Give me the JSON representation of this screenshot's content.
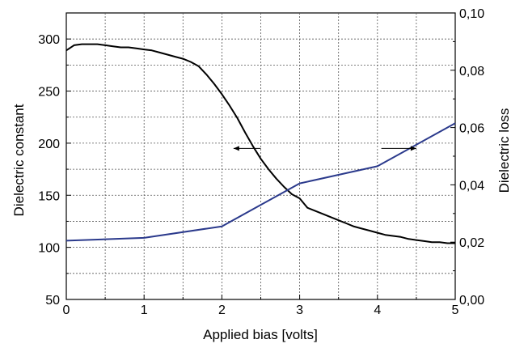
{
  "chart_data": {
    "type": "line",
    "title": "",
    "xlabel": "Applied bias [volts]",
    "ylabel_left": "Dielectric constant",
    "ylabel_right": "Dielectric loss",
    "xlim": [
      0,
      5
    ],
    "ylim_left": [
      50,
      325
    ],
    "ylim_right": [
      0.0,
      0.1
    ],
    "x_ticks": [
      0,
      1,
      2,
      3,
      4,
      5
    ],
    "x_tick_labels": [
      "0",
      "1",
      "2",
      "3",
      "4",
      "5"
    ],
    "y_left_ticks": [
      50,
      100,
      150,
      200,
      250,
      300
    ],
    "y_left_tick_labels": [
      "50",
      "100",
      "150",
      "200",
      "250",
      "300"
    ],
    "y_right_ticks": [
      0.0,
      0.02,
      0.04,
      0.06,
      0.08,
      0.1
    ],
    "y_right_tick_labels": [
      "0,00",
      "0,02",
      "0,04",
      "0,06",
      "0,08",
      "0,10"
    ],
    "grid": true,
    "series": [
      {
        "axis": "left",
        "color": "#000000",
        "x": [
          0,
          0.1,
          0.2,
          0.3,
          0.4,
          0.5,
          0.6,
          0.7,
          0.8,
          0.9,
          1.0,
          1.1,
          1.2,
          1.3,
          1.4,
          1.5,
          1.6,
          1.7,
          1.8,
          1.9,
          2.0,
          2.1,
          2.2,
          2.3,
          2.4,
          2.5,
          2.6,
          2.7,
          2.8,
          2.9,
          3.0,
          3.1,
          3.2,
          3.3,
          3.4,
          3.5,
          3.6,
          3.7,
          3.8,
          3.9,
          4.0,
          4.1,
          4.2,
          4.3,
          4.4,
          4.5,
          4.6,
          4.7,
          4.8,
          4.9,
          5.0
        ],
        "values": [
          289,
          294,
          295,
          295,
          295,
          294,
          293,
          292,
          292,
          291,
          290,
          289,
          287,
          285,
          283,
          281,
          278,
          274,
          266,
          257,
          247,
          236,
          224,
          210,
          197,
          185,
          175,
          166,
          158,
          151,
          147,
          138,
          135,
          132,
          129,
          126,
          123,
          120,
          118,
          116,
          114,
          112,
          111,
          110,
          108,
          107,
          106,
          105,
          105,
          104,
          104
        ]
      },
      {
        "axis": "right",
        "color": "#2b3a8c",
        "x": [
          0,
          1,
          2,
          3,
          4,
          5
        ],
        "values": [
          0.0205,
          0.0215,
          0.0255,
          0.0405,
          0.0465,
          0.0615
        ]
      }
    ],
    "annotations": [
      {
        "type": "arrow",
        "direction": "left",
        "points_to_axis": "left",
        "x_from": 2.5,
        "x_to": 2.15,
        "y": 195
      },
      {
        "type": "arrow",
        "direction": "right",
        "points_to_axis": "right",
        "x_from": 4.05,
        "x_to": 4.5,
        "y": 195
      }
    ]
  }
}
